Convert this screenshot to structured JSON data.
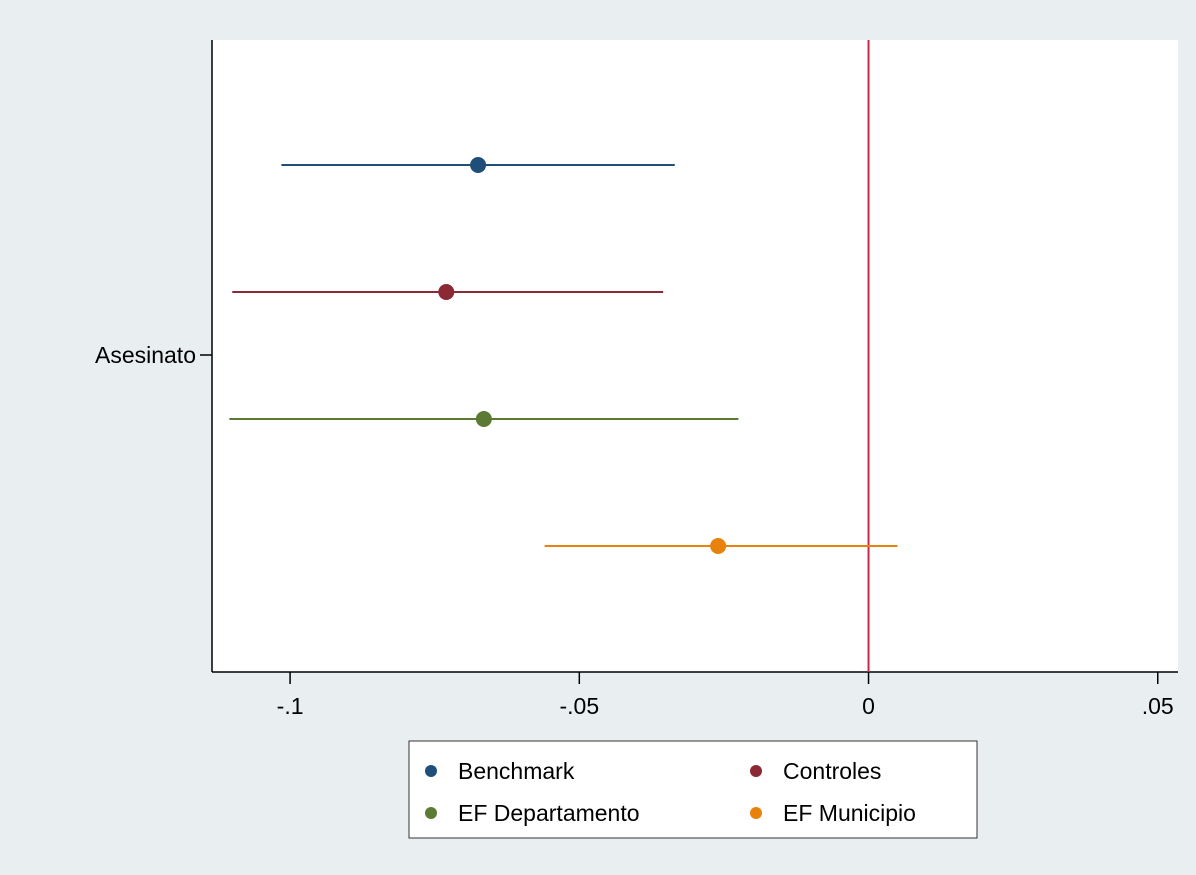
{
  "chart_data": {
    "type": "scatter",
    "subtype": "coefficient-plot",
    "title": "",
    "xlabel": "",
    "ylabel": "",
    "y_categories": [
      "Asesinato"
    ],
    "x_ticks": [
      {
        "value": -0.1,
        "label": "-.1"
      },
      {
        "value": -0.05,
        "label": "-.05"
      },
      {
        "value": 0,
        "label": "0"
      },
      {
        "value": 0.05,
        "label": ".05"
      }
    ],
    "xlim": [
      -0.1135,
      0.0535
    ],
    "reference_line": {
      "x": 0,
      "color": "#c8294a"
    },
    "grid": false,
    "legend_position": "bottom",
    "series": [
      {
        "name": "Benchmark",
        "color": "#1f4e79",
        "estimate": -0.0675,
        "ci": [
          -0.1015,
          -0.0335
        ]
      },
      {
        "name": "Controles",
        "color": "#8b2a35",
        "estimate": -0.073,
        "ci": [
          -0.11,
          -0.0355
        ]
      },
      {
        "name": "EF Departamento",
        "color": "#5b7b35",
        "estimate": -0.0665,
        "ci": [
          -0.1105,
          -0.0225
        ]
      },
      {
        "name": "EF Municipio",
        "color": "#e8820c",
        "estimate": -0.026,
        "ci": [
          -0.056,
          0.005
        ]
      }
    ]
  },
  "colors": {
    "outer_background": "#e9eef1",
    "plot_background": "#ffffff",
    "axis": "#000000"
  }
}
